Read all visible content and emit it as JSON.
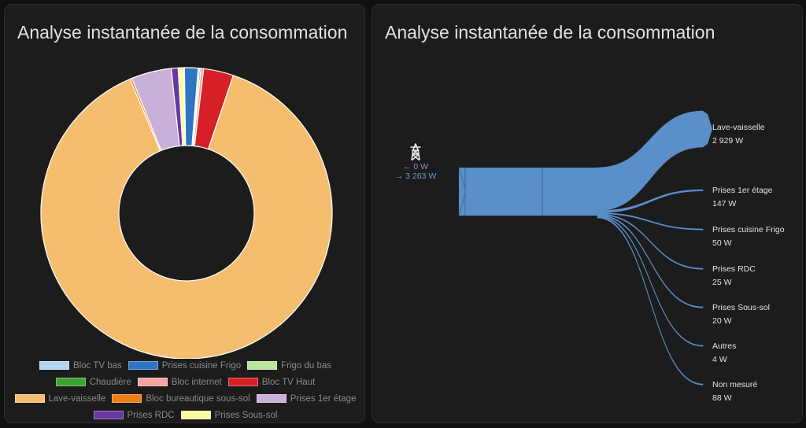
{
  "left_card": {
    "title": "Analyse instantanée de la consommation",
    "chart_data": {
      "type": "pie",
      "series": [
        {
          "name": "Bloc TV bas",
          "value": 3,
          "color": "#b5d5ec"
        },
        {
          "name": "Prises cuisine Frigo",
          "value": 50,
          "color": "#2e75c3"
        },
        {
          "name": "Frigo du bas",
          "value": 5,
          "color": "#b9e59e"
        },
        {
          "name": "Chaudière",
          "value": 5,
          "color": "#3ea331"
        },
        {
          "name": "Bloc internet",
          "value": 10,
          "color": "#f5a3a3"
        },
        {
          "name": "Bloc TV Haut",
          "value": 110,
          "color": "#d61f27"
        },
        {
          "name": "Lave-vaisselle",
          "value": 2929,
          "color": "#f5be6e"
        },
        {
          "name": "Bloc bureautique sous-sol",
          "value": 8,
          "color": "#f07f12"
        },
        {
          "name": "Prises 1er étage",
          "value": 147,
          "color": "#c8b0d8"
        },
        {
          "name": "Prises RDC",
          "value": 25,
          "color": "#6838a0"
        },
        {
          "name": "Prises Sous-sol",
          "value": 20,
          "color": "#fbfca0"
        }
      ],
      "legend_rows": [
        [
          0,
          1,
          2
        ],
        [
          3,
          4,
          5
        ],
        [
          6,
          7,
          8
        ],
        [
          9,
          10
        ]
      ]
    }
  },
  "right_card": {
    "title": "Analyse instantanée de la consommation",
    "grid": {
      "icon": "transmission-tower-icon",
      "returned": "← 0 W",
      "consumed": "→ 3 263 W"
    },
    "chart_data": {
      "type": "sankey",
      "total": 3263,
      "flow_color": "#5b8fc9",
      "targets": [
        {
          "name": "Lave-vaisselle",
          "value": 2929,
          "value_label": "2 929 W"
        },
        {
          "name": "Prises 1er étage",
          "value": 147,
          "value_label": "147 W"
        },
        {
          "name": "Prises cuisine Frigo",
          "value": 50,
          "value_label": "50 W"
        },
        {
          "name": "Prises RDC",
          "value": 25,
          "value_label": "25 W"
        },
        {
          "name": "Prises Sous-sol",
          "value": 20,
          "value_label": "20 W"
        },
        {
          "name": "Autres",
          "value": 4,
          "value_label": "4 W"
        },
        {
          "name": "Non mesuré",
          "value": 88,
          "value_label": "88 W"
        }
      ]
    }
  }
}
